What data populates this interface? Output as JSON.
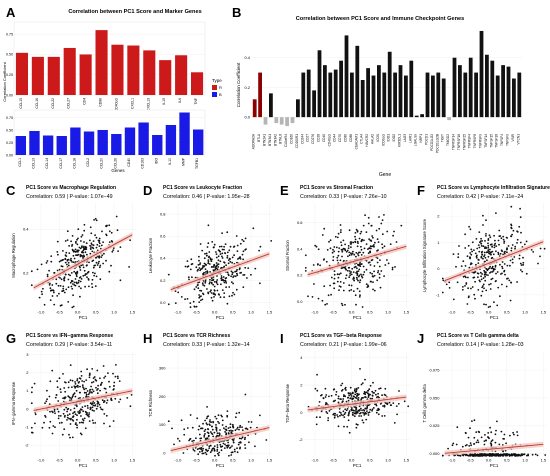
{
  "colors": {
    "red": "#cc1a1a",
    "blue": "#1a1ae6",
    "black": "#111111",
    "grey": "#b5b5b5",
    "trend": "#c0392b",
    "band": "#f2c9c4",
    "grid": "#ebebeb"
  },
  "panel_a": {
    "letter": "A",
    "title": "Correlation between PC1 Score and Marker Genes",
    "ylabel": "Correlation Coefficient",
    "xlabel": "Genes",
    "legend_title": "Type",
    "legend_items": [
      "R",
      "B"
    ],
    "top_ticks": [
      "0.75",
      "0.50",
      "0.25",
      "0.00"
    ],
    "bottom_ticks": [
      "0.75",
      "0.50",
      "0.25",
      "0.00"
    ]
  },
  "panel_b": {
    "letter": "B",
    "title": "Correlation between PC1 Score and Immune Checkpoint Genes",
    "ylabel": "Correlation Coefficient",
    "xlabel": "Gene",
    "ticks": [
      "0.4",
      "0.2",
      "0.0"
    ]
  },
  "chart_data": [
    {
      "type": "bar",
      "title": "Correlation between PC1 Score and Marker Genes",
      "xlabel": "Genes",
      "ylabel": "Correlation Coefficient",
      "legend": {
        "title": "Type",
        "position": "right"
      },
      "facets": [
        {
          "categories": [
            "CCL15",
            "CCL16",
            "CCL22",
            "CCL27",
            "CD4",
            "CD86",
            "CD40LG",
            "CXCL1",
            "CXCL13",
            "IL15",
            "IL6",
            "TNF"
          ],
          "series": [
            {
              "name": "R",
              "values": [
                0.52,
                0.47,
                0.47,
                0.58,
                0.5,
                0.8,
                0.62,
                0.61,
                0.55,
                0.43,
                0.49,
                0.28
              ]
            }
          ],
          "ylim": [
            0,
            0.9
          ]
        },
        {
          "categories": [
            "CCL1",
            "CCL13",
            "CCL14",
            "CCL17",
            "CCL18",
            "CCL2",
            "CCL20",
            "CCL26",
            "CD40",
            "CD163",
            "IDO",
            "IL10",
            "MMP",
            "TGFB1"
          ],
          "series": [
            {
              "name": "B",
              "values": [
                0.38,
                0.48,
                0.39,
                0.38,
                0.55,
                0.47,
                0.5,
                0.42,
                0.55,
                0.65,
                0.4,
                0.6,
                0.85,
                0.51
              ]
            }
          ],
          "ylim": [
            0,
            0.9
          ]
        }
      ]
    },
    {
      "type": "bar",
      "title": "Correlation between PC1 Score and Immune Checkpoint Genes",
      "xlabel": "Gene",
      "ylabel": "Correlation Coefficient",
      "categories": [
        "ADORA2A",
        "BTLA",
        "BTN2A1",
        "BTN3A1",
        "BTN3A2",
        "BTNL8",
        "C10orf54",
        "CD160",
        "CD200R1",
        "CD244",
        "CD27",
        "CD276",
        "CD28",
        "CD40",
        "CD40LG",
        "CD44",
        "CD70",
        "CD80",
        "CD86",
        "CEACAM1",
        "CTLA4",
        "HAVCR2",
        "HHLA2",
        "ICOS",
        "ICOSLG",
        "IDO1",
        "IDO2",
        "KIR3DL1",
        "LAG3",
        "LAIR1",
        "LGALS9",
        "NRP1",
        "PDCD1",
        "PDCD1LG2",
        "PDCD1LG2B",
        "TIGIT",
        "TMIGD2",
        "TNFRSF14",
        "TNFRSF18",
        "TNFRSF25",
        "TNFRSF4",
        "TNFRSF8",
        "TNFRSF9",
        "TNFSF14",
        "TNFSF15",
        "TNFSF18",
        "TNFSF4",
        "TNFSF9",
        "VSIR",
        "VTCN1"
      ],
      "values": [
        0.12,
        0.3,
        -0.05,
        0.16,
        -0.04,
        -0.05,
        -0.06,
        -0.04,
        0.12,
        0.3,
        0.32,
        0.18,
        0.45,
        0.35,
        0.3,
        0.32,
        0.38,
        0.55,
        0.3,
        0.48,
        0.25,
        0.33,
        0.28,
        0.35,
        0.3,
        0.44,
        0.3,
        0.35,
        0.28,
        0.38,
        0.01,
        0.02,
        0.3,
        0.28,
        0.3,
        0.26,
        -0.02,
        0.4,
        0.35,
        0.3,
        0.4,
        0.3,
        0.58,
        0.42,
        0.38,
        0.28,
        0.35,
        0.34,
        0.26,
        0.3
      ],
      "ylim": [
        -0.1,
        0.6
      ]
    },
    {
      "type": "scatter",
      "title": "PC1 Score vs Macrophage Regulation",
      "subtitle": "Correlation: 0.59 | P-value: 1.07e−49",
      "xlabel": "PC1",
      "ylabel": "Macrophage Regulation",
      "xticks": [
        "-1.0",
        "-0.5",
        "0.0",
        "0.5",
        "1.0",
        "1.5"
      ],
      "yticks": [
        "0.2",
        "0.4"
      ],
      "xlim": [
        -1.3,
        1.6
      ],
      "ylim": [
        0.04,
        0.52
      ],
      "slope": 0.09,
      "intercept": 0.24,
      "noise": 0.07
    },
    {
      "type": "scatter",
      "title": "PC1 Score vs Leukocyte Fraction",
      "subtitle": "Correlation: 0.46 | P-value: 1.95e−28",
      "xlabel": "PC1",
      "ylabel": "Leukocyte Fraction",
      "xticks": [
        "-1.0",
        "-0.5",
        "0.0",
        "0.5",
        "1.0",
        "1.5"
      ],
      "yticks": [
        "0.0",
        "0.2",
        "0.4",
        "0.6",
        "0.8"
      ],
      "xlim": [
        -1.3,
        1.6
      ],
      "ylim": [
        -0.05,
        0.9
      ],
      "slope": 0.12,
      "intercept": 0.26,
      "noise": 0.14
    },
    {
      "type": "scatter",
      "title": "PC1 Score vs Stromal Fraction",
      "subtitle": "Correlation: 0.33 | P-value: 7.26e−10",
      "xlabel": "PC1",
      "ylabel": "Stromal Fraction",
      "xticks": [
        "-1.0",
        "-0.5",
        "0.0",
        "0.5",
        "1.0",
        "1.5"
      ],
      "yticks": [
        "0.0",
        "0.2",
        "0.4",
        "0.6"
      ],
      "xlim": [
        -1.3,
        1.6
      ],
      "ylim": [
        -0.05,
        0.75
      ],
      "slope": 0.08,
      "intercept": 0.3,
      "noise": 0.14
    },
    {
      "type": "scatter",
      "title": "PC1 Score vs Lymphocyte Infiltration Signature Score",
      "subtitle": "Correlation: 0.42 | P-value: 7.11e−24",
      "xlabel": "PC1",
      "ylabel": "Lymphocyte Infiltration Signature Score",
      "xticks": [
        "-1.0",
        "-0.5",
        "0.0",
        "0.5",
        "1.0",
        "1.5"
      ],
      "yticks": [
        "-1",
        "0",
        "1",
        "2"
      ],
      "xlim": [
        -1.3,
        1.6
      ],
      "ylim": [
        -1.5,
        2.5
      ],
      "slope": 0.55,
      "intercept": 0.2,
      "noise": 0.7
    },
    {
      "type": "scatter",
      "title": "PC1 Score vs IFN−gamma Response",
      "subtitle": "Correlation: 0.29 | P-value: 3.54e−11",
      "xlabel": "PC1",
      "ylabel": "IFN−gamma Response",
      "xticks": [
        "-1.0",
        "-0.5",
        "0.0",
        "0.5",
        "1.0",
        "1.5"
      ],
      "yticks": [
        "-2",
        "-1",
        "0",
        "1",
        "2",
        "3"
      ],
      "xlim": [
        -1.3,
        1.6
      ],
      "ylim": [
        -2.6,
        3.2
      ],
      "slope": 0.4,
      "intercept": 0.4,
      "noise": 0.8
    },
    {
      "type": "scatter",
      "title": "PC1 Score vs TCR Richness",
      "subtitle": "Correlation: 0.33 | P-value: 1.32e−14",
      "xlabel": "PC1",
      "ylabel": "TCR Richness",
      "xticks": [
        "-1.0",
        "-0.5",
        "0.0",
        "0.5",
        "1.0",
        "1.5"
      ],
      "yticks": [
        "0",
        "100",
        "200",
        "300"
      ],
      "xlim": [
        -1.3,
        1.6
      ],
      "ylim": [
        -10,
        360
      ],
      "slope": 30,
      "intercept": 45,
      "noise": 50
    },
    {
      "type": "scatter",
      "title": "PC1 Score vs TGF−beta Response",
      "subtitle": "Correlation: 0.21 | P-value: 1.99e−06",
      "xlabel": "PC1",
      "ylabel": "TGF−beta Response",
      "xticks": [
        "-1.0",
        "-0.5",
        "0.0",
        "0.5",
        "1.0",
        "1.5"
      ],
      "yticks": [
        "-2",
        "0",
        "2",
        "4"
      ],
      "xlim": [
        -1.3,
        1.6
      ],
      "ylim": [
        -3.2,
        4.5
      ],
      "slope": 0.35,
      "intercept": 0.6,
      "noise": 0.7
    },
    {
      "type": "scatter",
      "title": "PC1 Score vs T Cells gamma delta",
      "subtitle": "Correlation: 0.14 | P-value: 1.28e−03",
      "xlabel": "PC1",
      "ylabel": "T Cells gamma delta",
      "xticks": [
        "-1.0",
        "-0.5",
        "0.0",
        "0.5",
        "1.0",
        "1.5"
      ],
      "yticks": [
        "0.000",
        "0.025",
        "0.050",
        "0.075"
      ],
      "xlim": [
        -1.3,
        1.6
      ],
      "ylim": [
        -0.002,
        0.092
      ],
      "slope": 0.003,
      "intercept": 0.004,
      "noise": 0.012,
      "zero_heavy": true
    }
  ],
  "scatter_letters": [
    "C",
    "D",
    "E",
    "F",
    "G",
    "H",
    "I",
    "J"
  ]
}
